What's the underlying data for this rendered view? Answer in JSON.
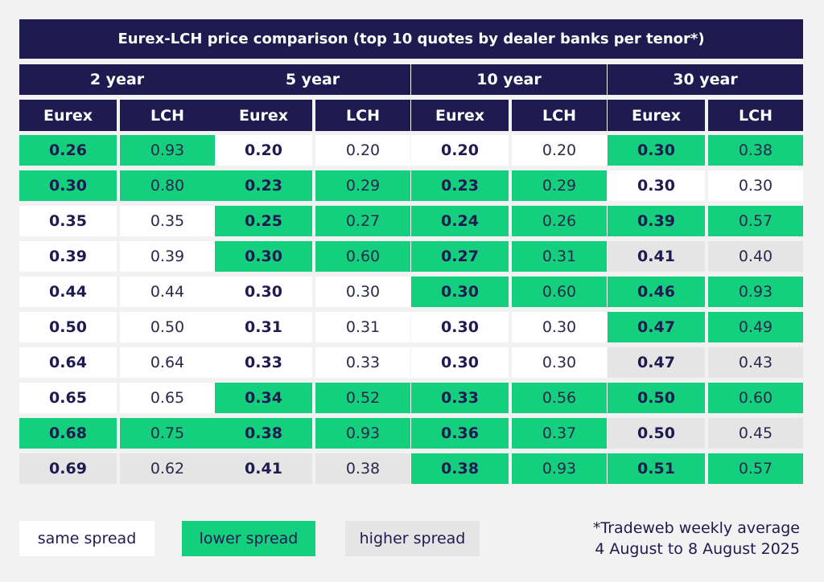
{
  "colors": {
    "header": "#1f1a50",
    "same": "#ffffff",
    "lower": "#13cf7e",
    "higher": "#e5e5e5",
    "background": "#f2f2f2"
  },
  "chart_data": {
    "type": "table",
    "title": "Eurex-LCH price comparison (top 10 quotes by dealer banks per tenor*)",
    "columns": [
      "Eurex",
      "LCH"
    ],
    "legend": {
      "same": "same spread",
      "lower": "lower spread",
      "higher": "higher spread"
    },
    "tenors": [
      {
        "name": "2 year",
        "rows": [
          {
            "eurex": "0.26",
            "lch": "0.93",
            "status": "lower"
          },
          {
            "eurex": "0.30",
            "lch": "0.80",
            "status": "lower"
          },
          {
            "eurex": "0.35",
            "lch": "0.35",
            "status": "same"
          },
          {
            "eurex": "0.39",
            "lch": "0.39",
            "status": "same"
          },
          {
            "eurex": "0.44",
            "lch": "0.44",
            "status": "same"
          },
          {
            "eurex": "0.50",
            "lch": "0.50",
            "status": "same"
          },
          {
            "eurex": "0.64",
            "lch": "0.64",
            "status": "same"
          },
          {
            "eurex": "0.65",
            "lch": "0.65",
            "status": "same"
          },
          {
            "eurex": "0.68",
            "lch": "0.75",
            "status": "lower"
          },
          {
            "eurex": "0.69",
            "lch": "0.62",
            "status": "higher"
          }
        ]
      },
      {
        "name": "5 year",
        "rows": [
          {
            "eurex": "0.20",
            "lch": "0.20",
            "status": "same"
          },
          {
            "eurex": "0.23",
            "lch": "0.29",
            "status": "lower"
          },
          {
            "eurex": "0.25",
            "lch": "0.27",
            "status": "lower"
          },
          {
            "eurex": "0.30",
            "lch": "0.60",
            "status": "lower"
          },
          {
            "eurex": "0.30",
            "lch": "0.30",
            "status": "same"
          },
          {
            "eurex": "0.31",
            "lch": "0.31",
            "status": "same"
          },
          {
            "eurex": "0.33",
            "lch": "0.33",
            "status": "same"
          },
          {
            "eurex": "0.34",
            "lch": "0.52",
            "status": "lower"
          },
          {
            "eurex": "0.38",
            "lch": "0.93",
            "status": "lower"
          },
          {
            "eurex": "0.41",
            "lch": "0.38",
            "status": "higher"
          }
        ]
      },
      {
        "name": "10 year",
        "rows": [
          {
            "eurex": "0.20",
            "lch": "0.20",
            "status": "same"
          },
          {
            "eurex": "0.23",
            "lch": "0.29",
            "status": "lower"
          },
          {
            "eurex": "0.24",
            "lch": "0.26",
            "status": "lower"
          },
          {
            "eurex": "0.27",
            "lch": "0.31",
            "status": "lower"
          },
          {
            "eurex": "0.30",
            "lch": "0.60",
            "status": "lower"
          },
          {
            "eurex": "0.30",
            "lch": "0.30",
            "status": "same"
          },
          {
            "eurex": "0.30",
            "lch": "0.30",
            "status": "same"
          },
          {
            "eurex": "0.33",
            "lch": "0.56",
            "status": "lower"
          },
          {
            "eurex": "0.36",
            "lch": "0.37",
            "status": "lower"
          },
          {
            "eurex": "0.38",
            "lch": "0.93",
            "status": "lower"
          }
        ]
      },
      {
        "name": "30 year",
        "rows": [
          {
            "eurex": "0.30",
            "lch": "0.38",
            "status": "lower"
          },
          {
            "eurex": "0.30",
            "lch": "0.30",
            "status": "same"
          },
          {
            "eurex": "0.39",
            "lch": "0.57",
            "status": "lower"
          },
          {
            "eurex": "0.41",
            "lch": "0.40",
            "status": "higher"
          },
          {
            "eurex": "0.46",
            "lch": "0.93",
            "status": "lower"
          },
          {
            "eurex": "0.47",
            "lch": "0.49",
            "status": "lower"
          },
          {
            "eurex": "0.47",
            "lch": "0.43",
            "status": "higher"
          },
          {
            "eurex": "0.50",
            "lch": "0.60",
            "status": "lower"
          },
          {
            "eurex": "0.50",
            "lch": "0.45",
            "status": "higher"
          },
          {
            "eurex": "0.51",
            "lch": "0.57",
            "status": "lower"
          }
        ]
      }
    ],
    "source_note": [
      "*Tradeweb weekly average",
      "4 August to 8 August 2025"
    ]
  }
}
